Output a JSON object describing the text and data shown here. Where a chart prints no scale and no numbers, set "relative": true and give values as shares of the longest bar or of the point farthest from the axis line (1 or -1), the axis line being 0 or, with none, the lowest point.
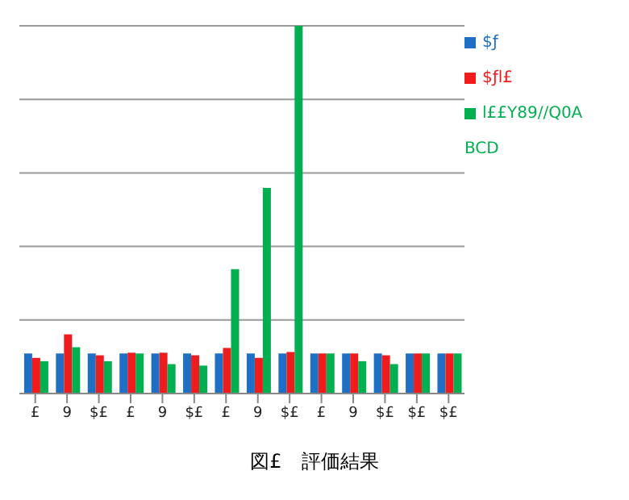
{
  "chart_data": {
    "type": "bar",
    "title": "図£　評価結果",
    "relative": true,
    "grid": "y",
    "legend": "top right",
    "categories": [
      "£",
      "9",
      "$£",
      "£",
      "9",
      "$£",
      "£",
      "9",
      "$£",
      "£",
      "9",
      "$£",
      "$£",
      "$£"
    ],
    "series": [
      {
        "name": "$ƒ",
        "color": "#1f6fc5",
        "values": [
          0.109,
          0.109,
          0.109,
          0.109,
          0.109,
          0.109,
          0.109,
          0.109,
          0.109,
          0.109,
          0.109,
          0.109,
          0.109,
          0.109
        ]
      },
      {
        "name": "$ƒl£",
        "color": "#ee1c1c",
        "values": [
          0.097,
          0.161,
          0.104,
          0.111,
          0.111,
          0.104,
          0.124,
          0.097,
          0.113,
          0.109,
          0.109,
          0.104,
          0.109,
          0.109
        ]
      },
      {
        "name": "l££Y89//Q0A BCD",
        "color": "#00b050",
        "values": [
          0.088,
          0.126,
          0.088,
          0.109,
          0.08,
          0.076,
          0.338,
          0.559,
          1,
          0.109,
          0.088,
          0.08,
          0.109,
          0.109
        ]
      }
    ]
  }
}
